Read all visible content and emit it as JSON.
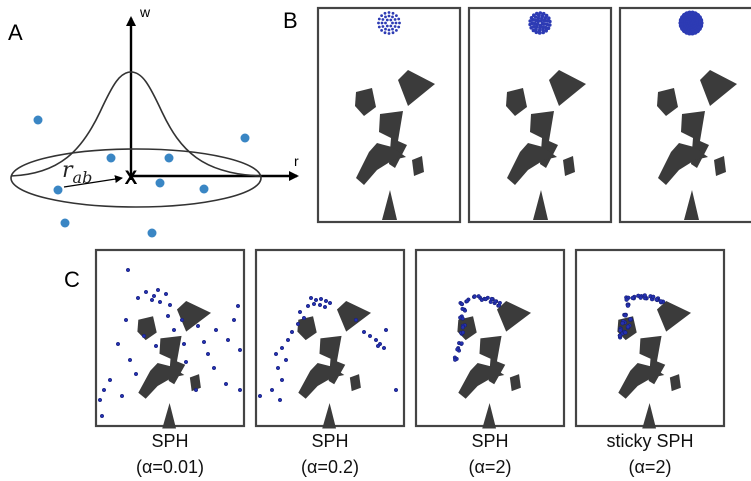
{
  "panel_a": {
    "letter": "A",
    "y_axis_label": "w",
    "x_axis_label": "r",
    "center_marker": "X",
    "radius_symbol": "r",
    "radius_subscript": "ab"
  },
  "panel_b": {
    "letter": "B",
    "stages": [
      "small droplet ring",
      "denser droplet",
      "solid droplet"
    ]
  },
  "panel_c": {
    "letter": "C",
    "captions": [
      {
        "method": "SPH",
        "param": "(α=0.01)"
      },
      {
        "method": "SPH",
        "param": "(α=0.2)"
      },
      {
        "method": "SPH",
        "param": "(α=2)"
      },
      {
        "method": "sticky SPH",
        "param": "(α=2)"
      }
    ]
  },
  "colors": {
    "particle_blue": "#2430b0",
    "point_blue": "#3a86c4",
    "rock": "#3b3b3b",
    "frame": "#444444"
  }
}
